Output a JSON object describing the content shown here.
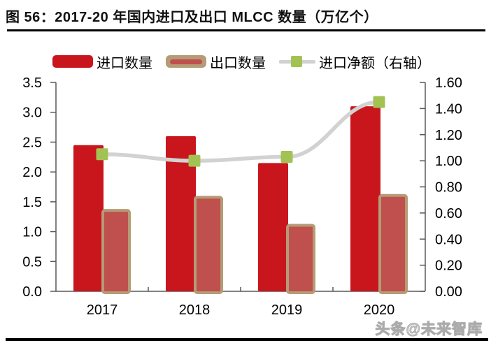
{
  "title": "图 56：2017-20 年国内进口及出口 MLCC 数量（万亿个）",
  "watermark": "头条@未来智库",
  "legend": [
    {
      "label": "进口数量",
      "swatch": "filled-bar",
      "color": "#c9161d"
    },
    {
      "label": "出口数量",
      "swatch": "outlined-bar",
      "fill_color": "#c0504d",
      "border_color": "#b59b76"
    },
    {
      "label": "进口净额（右轴）",
      "swatch": "line-marker",
      "line_color": "#d2d2d2",
      "marker_color": "#a2c353"
    }
  ],
  "chart_data": {
    "type": "bar",
    "subtype": "combo-bar-line",
    "title": "2017-20 年国内进口及出口 MLCC 数量（万亿个）",
    "categories": [
      "2017",
      "2018",
      "2019",
      "2020"
    ],
    "series": [
      {
        "name": "进口数量",
        "type": "bar",
        "axis": "left",
        "values": [
          2.45,
          2.6,
          2.15,
          3.1
        ],
        "color": "#c9161d"
      },
      {
        "name": "出口数量",
        "type": "bar",
        "axis": "left",
        "values": [
          1.38,
          1.6,
          1.13,
          1.63
        ],
        "color": "#c0504d",
        "border_color": "#b59b76"
      },
      {
        "name": "进口净额（右轴）",
        "type": "line",
        "axis": "right",
        "values": [
          1.05,
          1.0,
          1.03,
          1.45
        ],
        "line_color": "#d2d2d2",
        "marker_color": "#a2c353"
      }
    ],
    "left_axis": {
      "min": 0.0,
      "max": 3.5,
      "ticks": [
        "3.5",
        "3.0",
        "2.5",
        "2.0",
        "1.5",
        "1.0",
        "0.5",
        "0.0"
      ]
    },
    "right_axis": {
      "min": 0.0,
      "max": 1.6,
      "ticks": [
        "1.60",
        "1.40",
        "1.20",
        "1.00",
        "0.80",
        "0.60",
        "0.40",
        "0.20",
        "0.00"
      ]
    },
    "xlabel": "",
    "ylabel": "",
    "grid": false,
    "legend_position": "top",
    "axis_color": "#595959"
  }
}
